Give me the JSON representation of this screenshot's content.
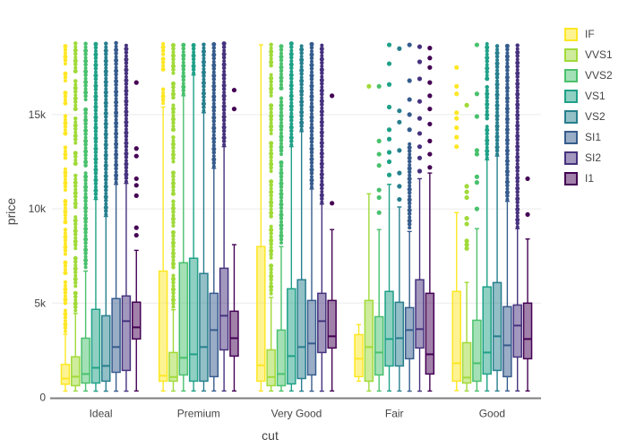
{
  "chart_data": {
    "type": "box",
    "title": "",
    "xlabel": "cut",
    "ylabel": "price",
    "categories": [
      "Ideal",
      "Premium",
      "Very Good",
      "Fair",
      "Good"
    ],
    "ylim": [
      0,
      19800
    ],
    "yticks": [
      {
        "value": 0,
        "label": "0"
      },
      {
        "value": 5000,
        "label": "5k"
      },
      {
        "value": 10000,
        "label": "10k"
      },
      {
        "value": 15000,
        "label": "15k"
      }
    ],
    "grid": "faint horizontal gridlines at y ticks",
    "legend_position": "top-right",
    "orientation": "vertical grouped boxes, outlier points shown above upper whiskers",
    "series": [
      {
        "name": "IF",
        "color": "#fde725",
        "boxes": [
          {
            "low": 330,
            "q1": 700,
            "median": 1000,
            "q3": 1750,
            "high": 3350,
            "outlier_bands": [
              [
                3500,
                4700
              ],
              [
                5000,
                6200
              ],
              [
                6600,
                7200
              ],
              [
                7600,
                8900
              ],
              [
                9300,
                10500
              ],
              [
                11000,
                12200
              ],
              [
                12700,
                13300
              ],
              [
                14000,
                15100
              ],
              [
                15600,
                16200
              ],
              [
                16800,
                17200
              ],
              [
                17700,
                18800
              ]
            ],
            "outlier_points": []
          },
          {
            "low": 340,
            "q1": 860,
            "median": 1150,
            "q3": 6700,
            "high": 15400,
            "outlier_bands": [
              [
                15600,
                16400
              ],
              [
                17400,
                18000
              ],
              [
                18200,
                18800
              ]
            ],
            "outlier_points": []
          },
          {
            "low": 340,
            "q1": 860,
            "median": 1700,
            "q3": 8000,
            "high": 18700,
            "outlier_bands": [],
            "outlier_points": []
          },
          {
            "low": 860,
            "q1": 1100,
            "median": 2050,
            "q3": 3330,
            "high": 3860,
            "outlier_bands": [],
            "outlier_points": []
          },
          {
            "low": 360,
            "q1": 860,
            "median": 1810,
            "q3": 5620,
            "high": 9800,
            "outlier_bands": [],
            "outlier_points": [
              13300,
              13800,
              14300,
              14800,
              15100,
              16100,
              16500,
              17500
            ]
          }
        ]
      },
      {
        "name": "VVS1",
        "color": "#a0da39",
        "boxes": [
          {
            "low": 336,
            "q1": 620,
            "median": 1100,
            "q3": 2150,
            "high": 4450,
            "outlier_bands": [
              [
                4600,
                5600
              ],
              [
                5900,
                7500
              ],
              [
                7900,
                9700
              ],
              [
                10100,
                11800
              ],
              [
                12400,
                13100
              ],
              [
                13500,
                14800
              ],
              [
                15300,
                16900
              ],
              [
                17300,
                18800
              ]
            ],
            "outlier_points": []
          },
          {
            "low": 336,
            "q1": 860,
            "median": 1080,
            "q3": 2380,
            "high": 4650,
            "outlier_bands": [
              [
                4800,
                6500
              ],
              [
                6900,
                8800
              ],
              [
                9100,
                10400
              ],
              [
                10800,
                12000
              ],
              [
                12500,
                13800
              ],
              [
                14200,
                15500
              ],
              [
                15900,
                16800
              ],
              [
                17200,
                18800
              ]
            ],
            "outlier_points": []
          },
          {
            "low": 336,
            "q1": 620,
            "median": 1080,
            "q3": 2520,
            "high": 5300,
            "outlier_bands": [
              [
                5500,
                7000
              ],
              [
                7400,
                9200
              ],
              [
                9600,
                11500
              ],
              [
                12000,
                13500
              ],
              [
                14000,
                15500
              ],
              [
                16000,
                17200
              ],
              [
                17600,
                18800
              ]
            ],
            "outlier_points": []
          },
          {
            "low": 336,
            "q1": 857,
            "median": 2670,
            "q3": 5140,
            "high": 10800,
            "outlier_bands": [],
            "outlier_points": [
              16500
            ]
          },
          {
            "low": 340,
            "q1": 762,
            "median": 1050,
            "q3": 2900,
            "high": 6100,
            "outlier_bands": [],
            "outlier_points": [
              7900,
              8100,
              8300,
              9200,
              9500,
              10600,
              10900,
              11200,
              15500
            ]
          }
        ]
      },
      {
        "name": "VVS2",
        "color": "#4ac16d",
        "boxes": [
          {
            "low": 336,
            "q1": 760,
            "median": 1240,
            "q3": 3140,
            "high": 6700,
            "outlier_bands": [
              [
                6900,
                12000
              ],
              [
                12300,
                15400
              ],
              [
                15800,
                18800
              ]
            ],
            "outlier_points": []
          },
          {
            "low": 340,
            "q1": 1190,
            "median": 2100,
            "q3": 7140,
            "high": 16000,
            "outlier_bands": [
              [
                16100,
                18800
              ]
            ],
            "outlier_points": []
          },
          {
            "low": 336,
            "q1": 620,
            "median": 1240,
            "q3": 3570,
            "high": 8000,
            "outlier_bands": [
              [
                8200,
                12500
              ],
              [
                12900,
                16000
              ],
              [
                16400,
                18800
              ]
            ],
            "outlier_points": []
          },
          {
            "low": 336,
            "q1": 1190,
            "median": 2380,
            "q3": 4280,
            "high": 8900,
            "outlier_bands": [],
            "outlier_points": [
              9800,
              10600,
              11000,
              12300,
              12900,
              13600,
              16500
            ]
          },
          {
            "low": 336,
            "q1": 857,
            "median": 1810,
            "q3": 4090,
            "high": 8950,
            "outlier_bands": [],
            "outlier_points": [
              10000,
              11400,
              11700,
              12900,
              13100,
              14900,
              16100,
              18700
            ]
          }
        ]
      },
      {
        "name": "VS1",
        "color": "#1fa187",
        "boxes": [
          {
            "low": 330,
            "q1": 760,
            "median": 1570,
            "q3": 4670,
            "high": 10500,
            "outlier_bands": [
              [
                10600,
                18800
              ]
            ],
            "outlier_points": []
          },
          {
            "low": 340,
            "q1": 860,
            "median": 2285,
            "q3": 7380,
            "high": 17100,
            "outlier_bands": [
              [
                17200,
                18800
              ]
            ],
            "outlier_points": []
          },
          {
            "low": 340,
            "q1": 714,
            "median": 2190,
            "q3": 5760,
            "high": 13300,
            "outlier_bands": [
              [
                13400,
                18800
              ]
            ],
            "outlier_points": []
          },
          {
            "low": 337,
            "q1": 1666,
            "median": 3095,
            "q3": 5620,
            "high": 11300,
            "outlier_bands": [],
            "outlier_points": [
              11800,
              12500,
              13000,
              13700,
              14200,
              15400,
              16600,
              17700,
              18700
            ]
          },
          {
            "low": 340,
            "q1": 1240,
            "median": 2380,
            "q3": 5860,
            "high": 12600,
            "outlier_bands": [
              [
                12700,
                14500
              ],
              [
                14800,
                16500
              ],
              [
                16900,
                18800
              ]
            ],
            "outlier_points": []
          }
        ]
      },
      {
        "name": "VS2",
        "color": "#277f8e",
        "boxes": [
          {
            "low": 330,
            "q1": 860,
            "median": 1670,
            "q3": 4330,
            "high": 9600,
            "outlier_bands": [
              [
                9700,
                18800
              ]
            ],
            "outlier_points": []
          },
          {
            "low": 340,
            "q1": 860,
            "median": 2670,
            "q3": 6570,
            "high": 15100,
            "outlier_bands": [
              [
                15200,
                18800
              ]
            ],
            "outlier_points": []
          },
          {
            "low": 330,
            "q1": 1000,
            "median": 2670,
            "q3": 6240,
            "high": 14100,
            "outlier_bands": [
              [
                14200,
                18800
              ]
            ],
            "outlier_points": []
          },
          {
            "low": 336,
            "q1": 1666,
            "median": 3140,
            "q3": 5045,
            "high": 10100,
            "outlier_bands": [],
            "outlier_points": [
              10500,
              11200,
              11900,
              13100,
              14600,
              15200,
              18500
            ]
          },
          {
            "low": 340,
            "q1": 1430,
            "median": 3240,
            "q3": 6090,
            "high": 12800,
            "outlier_bands": [
              [
                12900,
                18800
              ]
            ],
            "outlier_points": []
          }
        ]
      },
      {
        "name": "SI1",
        "color": "#365c8d",
        "boxes": [
          {
            "low": 330,
            "q1": 1330,
            "median": 2670,
            "q3": 5240,
            "high": 11300,
            "outlier_bands": [
              [
                11400,
                18800
              ]
            ],
            "outlier_points": []
          },
          {
            "low": 340,
            "q1": 1100,
            "median": 3570,
            "q3": 5520,
            "high": 12150,
            "outlier_bands": [
              [
                12250,
                18800
              ]
            ],
            "outlier_points": []
          },
          {
            "low": 330,
            "q1": 1190,
            "median": 2860,
            "q3": 5140,
            "high": 11050,
            "outlier_bands": [
              [
                11150,
                18800
              ]
            ],
            "outlier_points": []
          },
          {
            "low": 330,
            "q1": 2050,
            "median": 3570,
            "q3": 4760,
            "high": 8800,
            "outlier_bands": [
              [
                9000,
                13500
              ]
            ],
            "outlier_points": [
              14200,
              15000,
              15800,
              16800,
              18700
            ]
          },
          {
            "low": 340,
            "q1": 1100,
            "median": 2760,
            "q3": 4810,
            "high": 10400,
            "outlier_bands": [
              [
                10500,
                18800
              ]
            ],
            "outlier_points": []
          }
        ]
      },
      {
        "name": "SI2",
        "color": "#46327e",
        "boxes": [
          {
            "low": 330,
            "q1": 1430,
            "median": 4045,
            "q3": 5380,
            "high": 11350,
            "outlier_bands": [
              [
                11450,
                18800
              ]
            ],
            "outlier_points": []
          },
          {
            "low": 340,
            "q1": 2520,
            "median": 4330,
            "q3": 6850,
            "high": 13300,
            "outlier_bands": [
              [
                13400,
                18800
              ]
            ],
            "outlier_points": []
          },
          {
            "low": 330,
            "q1": 2380,
            "median": 4045,
            "q3": 5520,
            "high": 10250,
            "outlier_bands": [
              [
                10350,
                18800
              ]
            ],
            "outlier_points": []
          },
          {
            "low": 330,
            "q1": 2620,
            "median": 3620,
            "q3": 6240,
            "high": 11600,
            "outlier_bands": [],
            "outlier_points": [
              12000,
              12700,
              13300,
              14000,
              14800,
              15700,
              16900,
              17800,
              18600
            ]
          },
          {
            "low": 340,
            "q1": 2140,
            "median": 3810,
            "q3": 4900,
            "high": 8950,
            "outlier_bands": [
              [
                9050,
                18800
              ]
            ],
            "outlier_points": []
          }
        ]
      },
      {
        "name": "I1",
        "color": "#440154",
        "boxes": [
          {
            "low": 340,
            "q1": 3100,
            "median": 3714,
            "q3": 5050,
            "high": 7800,
            "outlier_bands": [],
            "outlier_points": [
              8600,
              9000,
              10700,
              11250,
              11600,
              12800,
              13200,
              16700
            ]
          },
          {
            "low": 340,
            "q1": 2190,
            "median": 3140,
            "q3": 4570,
            "high": 8100,
            "outlier_bands": [],
            "outlier_points": [
              15300,
              16300
            ]
          },
          {
            "low": 340,
            "q1": 2620,
            "median": 3240,
            "q3": 5140,
            "high": 8900,
            "outlier_bands": [],
            "outlier_points": [
              10300,
              16000
            ]
          },
          {
            "low": 336,
            "q1": 1240,
            "median": 2285,
            "q3": 5520,
            "high": 11900,
            "outlier_bands": [],
            "outlier_points": [
              12200,
              12900,
              13600,
              14500,
              15300,
              16000,
              16700,
              17500,
              18000,
              18530
            ]
          },
          {
            "low": 340,
            "q1": 2050,
            "median": 3095,
            "q3": 5000,
            "high": 8400,
            "outlier_bands": [],
            "outlier_points": [
              9700,
              11600
            ]
          }
        ]
      }
    ]
  },
  "style": {
    "background": "#ffffff",
    "grid_color": "#ececec",
    "axis_line_color": "#7f7f7f",
    "text_color": "#444444"
  }
}
